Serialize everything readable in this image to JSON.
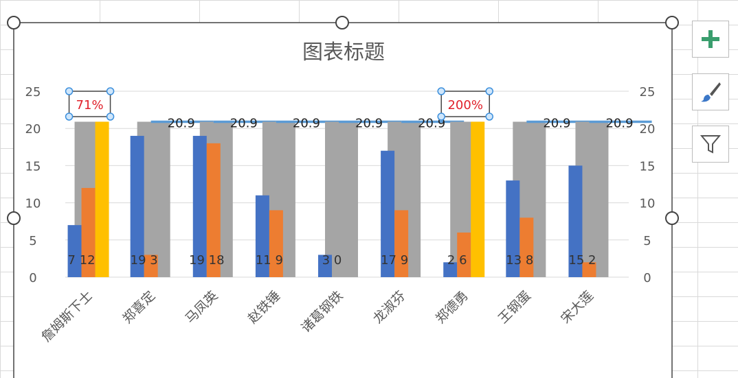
{
  "chart_data": {
    "type": "bar",
    "title": "图表标题",
    "categories": [
      "詹姆斯下士",
      "郑喜定",
      "马凤英",
      "赵铁锤",
      "诸葛钢铁",
      "龙淑芬",
      "郑德勇",
      "王钢蛋",
      "宋大莲"
    ],
    "series": [
      {
        "color": "#4472c4",
        "values": [
          7,
          19,
          19,
          11,
          3,
          17,
          2,
          13,
          15
        ],
        "labels": [
          "7",
          "19",
          "19",
          "11",
          "3",
          "17",
          "2",
          "13",
          "15"
        ]
      },
      {
        "color": "#ed7d31",
        "values": [
          12,
          3,
          18,
          9,
          0,
          9,
          6,
          8,
          2
        ],
        "labels": [
          "12",
          "3",
          "18",
          "9",
          "0",
          "9",
          "6",
          "8",
          "2"
        ]
      },
      {
        "color": "#ffc000",
        "values": [
          20.9,
          null,
          null,
          null,
          null,
          null,
          20.9,
          null,
          null
        ]
      },
      {
        "color": "#a5a5a5",
        "axis": "secondary",
        "values": [
          20.9,
          20.9,
          20.9,
          20.9,
          20.9,
          20.9,
          20.9,
          20.9,
          20.9
        ]
      },
      {
        "type": "line",
        "color": "#5b9bd5",
        "values": [
          null,
          20.9,
          20.9,
          20.9,
          20.9,
          20.9,
          null,
          20.9,
          20.9
        ],
        "labels": [
          "",
          "20.9",
          "20.9",
          "20.9",
          "20.9",
          "20.9",
          "",
          "20.9",
          "20.9"
        ]
      }
    ],
    "callouts": [
      {
        "category": "詹姆斯下士",
        "text": "71%",
        "color": "#e0202a"
      },
      {
        "category": "郑德勇",
        "text": "200%",
        "color": "#e0202a"
      }
    ],
    "ylim": [
      0,
      25
    ],
    "y_ticks": [
      "0",
      "5",
      "10",
      "15",
      "20",
      "25"
    ],
    "y2lim": [
      0,
      25
    ],
    "y2_ticks": [
      "0",
      "5",
      "10",
      "15",
      "20",
      "25"
    ],
    "grid": true
  },
  "side_buttons": {
    "add": "plus-icon",
    "style": "brush-icon",
    "filter": "filter-icon"
  }
}
